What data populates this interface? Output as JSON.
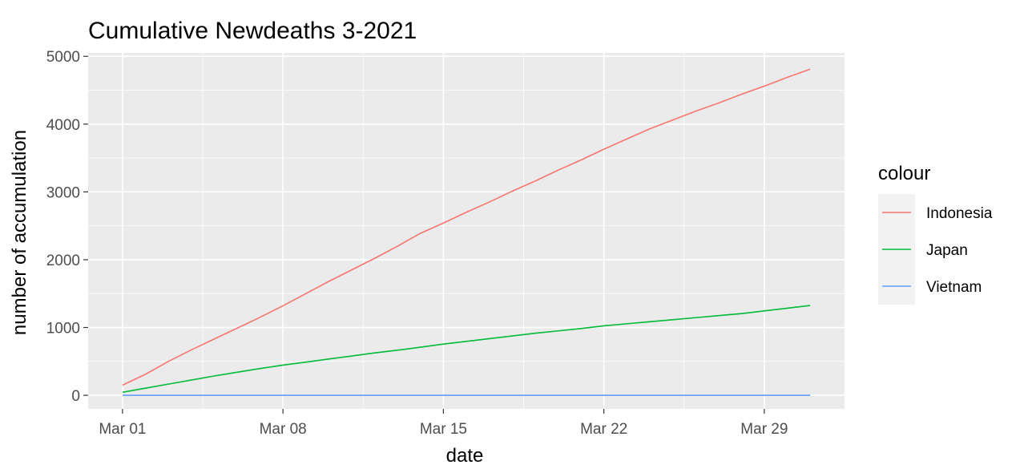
{
  "chart_data": {
    "type": "line",
    "title": "Cumulative Newdeaths 3-2021",
    "xlabel": "date",
    "ylabel": "number of accumulation",
    "x_tick_labels": [
      "Mar 01",
      "Mar 08",
      "Mar 15",
      "Mar 22",
      "Mar 29"
    ],
    "y_tick_labels": [
      "0",
      "1000",
      "2000",
      "3000",
      "4000",
      "5000"
    ],
    "x_domain_days": [
      1,
      31
    ],
    "ylim": [
      -200,
      5050
    ],
    "grid": true,
    "legend": {
      "title": "colour",
      "position": "right"
    },
    "x": [
      "2021-03-01",
      "2021-03-02",
      "2021-03-03",
      "2021-03-04",
      "2021-03-05",
      "2021-03-06",
      "2021-03-07",
      "2021-03-08",
      "2021-03-09",
      "2021-03-10",
      "2021-03-11",
      "2021-03-12",
      "2021-03-13",
      "2021-03-14",
      "2021-03-15",
      "2021-03-16",
      "2021-03-17",
      "2021-03-18",
      "2021-03-19",
      "2021-03-20",
      "2021-03-21",
      "2021-03-22",
      "2021-03-23",
      "2021-03-24",
      "2021-03-25",
      "2021-03-26",
      "2021-03-27",
      "2021-03-28",
      "2021-03-29",
      "2021-03-30",
      "2021-03-31"
    ],
    "series": [
      {
        "name": "Indonesia",
        "color": "#F8766D",
        "values": [
          150,
          310,
          500,
          670,
          830,
          990,
          1150,
          1320,
          1500,
          1680,
          1850,
          2020,
          2200,
          2390,
          2540,
          2700,
          2850,
          3010,
          3160,
          3320,
          3470,
          3630,
          3780,
          3930,
          4060,
          4190,
          4310,
          4440,
          4560,
          4690,
          4810
        ]
      },
      {
        "name": "Japan",
        "color": "#00BA38",
        "values": [
          45,
          105,
          165,
          225,
          285,
          340,
          395,
          445,
          490,
          535,
          580,
          625,
          665,
          710,
          755,
          795,
          835,
          875,
          915,
          950,
          985,
          1025,
          1055,
          1085,
          1115,
          1145,
          1175,
          1205,
          1245,
          1285,
          1325
        ]
      },
      {
        "name": "Vietnam",
        "color": "#619CFF",
        "values": [
          0,
          0,
          0,
          0,
          0,
          0,
          0,
          0,
          0,
          0,
          0,
          0,
          0,
          0,
          0,
          0,
          0,
          0,
          0,
          0,
          0,
          0,
          0,
          0,
          0,
          0,
          0,
          0,
          0,
          0,
          0
        ]
      }
    ]
  },
  "colors": {
    "panel_background": "#EBEBEB",
    "grid_major": "#FFFFFF",
    "axis_tick": "#333333",
    "legend_key_background": "#F2F2F2"
  }
}
